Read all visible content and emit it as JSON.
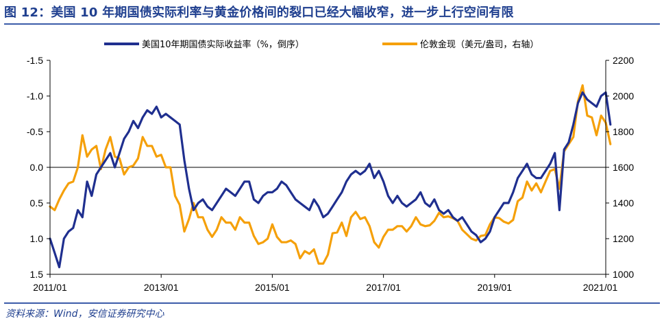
{
  "title": "图 12：美国 10 年期国债实际利率与黄金价格间的裂口已经大幅收窄，进一步上行空间有限",
  "source": "资料来源：Wind，安信证券研究中心",
  "chart_data": {
    "type": "line",
    "x_range": [
      "2011/01",
      "2021/01"
    ],
    "x_ticks": [
      "2011/01",
      "2013/01",
      "2015/01",
      "2017/01",
      "2019/01",
      "2021/01"
    ],
    "left_axis": {
      "inverted": true,
      "range": [
        1.5,
        -1.5
      ],
      "ticks": [
        "-1.5",
        "-1.0",
        "-0.5",
        "0.0",
        "0.5",
        "1.0",
        "1.5"
      ],
      "tick_values": [
        -1.5,
        -1.0,
        -0.5,
        0.0,
        0.5,
        1.0,
        1.5
      ]
    },
    "right_axis": {
      "range": [
        1000,
        2200
      ],
      "ticks": [
        "2200",
        "2000",
        "1800",
        "1600",
        "1400",
        "1200",
        "1000"
      ],
      "tick_values": [
        2200,
        2000,
        1800,
        1600,
        1400,
        1200,
        1000
      ]
    },
    "zero_line": true,
    "legend_position": "top",
    "series": [
      {
        "name": "美国10年期国债实际收益率（%，倒序）",
        "axis": "left",
        "color": "#1f2f8f",
        "points": [
          [
            "2011/01",
            1.0
          ],
          [
            "2011/02",
            1.2
          ],
          [
            "2011/03",
            1.4
          ],
          [
            "2011/04",
            1.0
          ],
          [
            "2011/05",
            0.9
          ],
          [
            "2011/06",
            0.85
          ],
          [
            "2011/07",
            0.6
          ],
          [
            "2011/08",
            0.7
          ],
          [
            "2011/09",
            0.2
          ],
          [
            "2011/10",
            0.4
          ],
          [
            "2011/11",
            0.1
          ],
          [
            "2011/12",
            0.0
          ],
          [
            "2012/01",
            -0.1
          ],
          [
            "2012/02",
            -0.2
          ],
          [
            "2012/03",
            0.0
          ],
          [
            "2012/04",
            -0.2
          ],
          [
            "2012/05",
            -0.4
          ],
          [
            "2012/06",
            -0.5
          ],
          [
            "2012/07",
            -0.65
          ],
          [
            "2012/08",
            -0.55
          ],
          [
            "2012/09",
            -0.7
          ],
          [
            "2012/10",
            -0.8
          ],
          [
            "2012/11",
            -0.75
          ],
          [
            "2012/12",
            -0.85
          ],
          [
            "2013/01",
            -0.7
          ],
          [
            "2013/02",
            -0.75
          ],
          [
            "2013/03",
            -0.7
          ],
          [
            "2013/04",
            -0.65
          ],
          [
            "2013/05",
            -0.6
          ],
          [
            "2013/06",
            -0.1
          ],
          [
            "2013/07",
            0.3
          ],
          [
            "2013/08",
            0.6
          ],
          [
            "2013/09",
            0.5
          ],
          [
            "2013/10",
            0.45
          ],
          [
            "2013/11",
            0.55
          ],
          [
            "2013/12",
            0.6
          ],
          [
            "2014/01",
            0.5
          ],
          [
            "2014/02",
            0.4
          ],
          [
            "2014/03",
            0.3
          ],
          [
            "2014/04",
            0.35
          ],
          [
            "2014/05",
            0.4
          ],
          [
            "2014/06",
            0.3
          ],
          [
            "2014/07",
            0.2
          ],
          [
            "2014/08",
            0.2
          ],
          [
            "2014/09",
            0.45
          ],
          [
            "2014/10",
            0.5
          ],
          [
            "2014/11",
            0.4
          ],
          [
            "2014/12",
            0.35
          ],
          [
            "2015/01",
            0.35
          ],
          [
            "2015/02",
            0.3
          ],
          [
            "2015/03",
            0.2
          ],
          [
            "2015/04",
            0.25
          ],
          [
            "2015/05",
            0.35
          ],
          [
            "2015/06",
            0.45
          ],
          [
            "2015/07",
            0.5
          ],
          [
            "2015/08",
            0.55
          ],
          [
            "2015/09",
            0.6
          ],
          [
            "2015/10",
            0.45
          ],
          [
            "2015/11",
            0.55
          ],
          [
            "2015/12",
            0.7
          ],
          [
            "2016/01",
            0.65
          ],
          [
            "2016/02",
            0.55
          ],
          [
            "2016/03",
            0.45
          ],
          [
            "2016/04",
            0.35
          ],
          [
            "2016/05",
            0.2
          ],
          [
            "2016/06",
            0.1
          ],
          [
            "2016/07",
            0.05
          ],
          [
            "2016/08",
            0.1
          ],
          [
            "2016/09",
            0.05
          ],
          [
            "2016/10",
            -0.05
          ],
          [
            "2016/11",
            0.15
          ],
          [
            "2016/12",
            0.05
          ],
          [
            "2017/01",
            0.2
          ],
          [
            "2017/02",
            0.4
          ],
          [
            "2017/03",
            0.5
          ],
          [
            "2017/04",
            0.4
          ],
          [
            "2017/05",
            0.5
          ],
          [
            "2017/06",
            0.55
          ],
          [
            "2017/07",
            0.5
          ],
          [
            "2017/08",
            0.45
          ],
          [
            "2017/09",
            0.35
          ],
          [
            "2017/10",
            0.5
          ],
          [
            "2017/11",
            0.55
          ],
          [
            "2017/12",
            0.45
          ],
          [
            "2018/01",
            0.6
          ],
          [
            "2018/02",
            0.65
          ],
          [
            "2018/03",
            0.6
          ],
          [
            "2018/04",
            0.7
          ],
          [
            "2018/05",
            0.75
          ],
          [
            "2018/06",
            0.7
          ],
          [
            "2018/07",
            0.8
          ],
          [
            "2018/08",
            0.9
          ],
          [
            "2018/09",
            0.95
          ],
          [
            "2018/10",
            1.05
          ],
          [
            "2018/11",
            1.0
          ],
          [
            "2018/12",
            0.9
          ],
          [
            "2019/01",
            0.7
          ],
          [
            "2019/02",
            0.6
          ],
          [
            "2019/03",
            0.5
          ],
          [
            "2019/04",
            0.5
          ],
          [
            "2019/05",
            0.35
          ],
          [
            "2019/06",
            0.15
          ],
          [
            "2019/07",
            0.05
          ],
          [
            "2019/08",
            -0.05
          ],
          [
            "2019/09",
            0.1
          ],
          [
            "2019/10",
            0.15
          ],
          [
            "2019/11",
            0.15
          ],
          [
            "2019/12",
            0.05
          ],
          [
            "2020/01",
            -0.05
          ],
          [
            "2020/02",
            -0.2
          ],
          [
            "2020/03",
            0.6
          ],
          [
            "2020/04",
            -0.25
          ],
          [
            "2020/05",
            -0.35
          ],
          [
            "2020/06",
            -0.6
          ],
          [
            "2020/07",
            -0.9
          ],
          [
            "2020/08",
            -1.05
          ],
          [
            "2020/09",
            -0.95
          ],
          [
            "2020/10",
            -0.9
          ],
          [
            "2020/11",
            -0.85
          ],
          [
            "2020/12",
            -1.0
          ],
          [
            "2021/01",
            -1.05
          ],
          [
            "2021/02",
            -0.6
          ]
        ]
      },
      {
        "name": "伦敦金现（美元/盎司，右轴）",
        "axis": "right",
        "color": "#f5a00a",
        "points": [
          [
            "2011/01",
            1380
          ],
          [
            "2011/02",
            1360
          ],
          [
            "2011/03",
            1420
          ],
          [
            "2011/04",
            1470
          ],
          [
            "2011/05",
            1510
          ],
          [
            "2011/06",
            1520
          ],
          [
            "2011/07",
            1600
          ],
          [
            "2011/08",
            1780
          ],
          [
            "2011/09",
            1660
          ],
          [
            "2011/10",
            1700
          ],
          [
            "2011/11",
            1720
          ],
          [
            "2011/12",
            1590
          ],
          [
            "2012/01",
            1700
          ],
          [
            "2012/02",
            1770
          ],
          [
            "2012/03",
            1660
          ],
          [
            "2012/04",
            1650
          ],
          [
            "2012/05",
            1560
          ],
          [
            "2012/06",
            1600
          ],
          [
            "2012/07",
            1610
          ],
          [
            "2012/08",
            1650
          ],
          [
            "2012/09",
            1770
          ],
          [
            "2012/10",
            1720
          ],
          [
            "2012/11",
            1720
          ],
          [
            "2012/12",
            1660
          ],
          [
            "2013/01",
            1670
          ],
          [
            "2013/02",
            1600
          ],
          [
            "2013/03",
            1600
          ],
          [
            "2013/04",
            1440
          ],
          [
            "2013/05",
            1390
          ],
          [
            "2013/06",
            1240
          ],
          [
            "2013/07",
            1310
          ],
          [
            "2013/08",
            1400
          ],
          [
            "2013/09",
            1320
          ],
          [
            "2013/10",
            1320
          ],
          [
            "2013/11",
            1250
          ],
          [
            "2013/12",
            1210
          ],
          [
            "2014/01",
            1250
          ],
          [
            "2014/02",
            1320
          ],
          [
            "2014/03",
            1290
          ],
          [
            "2014/04",
            1290
          ],
          [
            "2014/05",
            1250
          ],
          [
            "2014/06",
            1320
          ],
          [
            "2014/07",
            1290
          ],
          [
            "2014/08",
            1290
          ],
          [
            "2014/09",
            1215
          ],
          [
            "2014/10",
            1170
          ],
          [
            "2014/11",
            1180
          ],
          [
            "2014/12",
            1200
          ],
          [
            "2015/01",
            1280
          ],
          [
            "2015/02",
            1210
          ],
          [
            "2015/03",
            1180
          ],
          [
            "2015/04",
            1180
          ],
          [
            "2015/05",
            1190
          ],
          [
            "2015/06",
            1170
          ],
          [
            "2015/07",
            1090
          ],
          [
            "2015/08",
            1130
          ],
          [
            "2015/09",
            1115
          ],
          [
            "2015/10",
            1140
          ],
          [
            "2015/11",
            1060
          ],
          [
            "2015/12",
            1060
          ],
          [
            "2016/01",
            1110
          ],
          [
            "2016/02",
            1230
          ],
          [
            "2016/03",
            1235
          ],
          [
            "2016/04",
            1290
          ],
          [
            "2016/05",
            1215
          ],
          [
            "2016/06",
            1320
          ],
          [
            "2016/07",
            1350
          ],
          [
            "2016/08",
            1310
          ],
          [
            "2016/09",
            1320
          ],
          [
            "2016/10",
            1270
          ],
          [
            "2016/11",
            1180
          ],
          [
            "2016/12",
            1150
          ],
          [
            "2017/01",
            1210
          ],
          [
            "2017/02",
            1250
          ],
          [
            "2017/03",
            1250
          ],
          [
            "2017/04",
            1270
          ],
          [
            "2017/05",
            1270
          ],
          [
            "2017/06",
            1240
          ],
          [
            "2017/07",
            1270
          ],
          [
            "2017/08",
            1320
          ],
          [
            "2017/09",
            1280
          ],
          [
            "2017/10",
            1270
          ],
          [
            "2017/11",
            1275
          ],
          [
            "2017/12",
            1300
          ],
          [
            "2018/01",
            1345
          ],
          [
            "2018/02",
            1320
          ],
          [
            "2018/03",
            1325
          ],
          [
            "2018/04",
            1315
          ],
          [
            "2018/05",
            1300
          ],
          [
            "2018/06",
            1250
          ],
          [
            "2018/07",
            1225
          ],
          [
            "2018/08",
            1200
          ],
          [
            "2018/09",
            1190
          ],
          [
            "2018/10",
            1215
          ],
          [
            "2018/11",
            1220
          ],
          [
            "2018/12",
            1280
          ],
          [
            "2019/01",
            1320
          ],
          [
            "2019/02",
            1315
          ],
          [
            "2019/03",
            1295
          ],
          [
            "2019/04",
            1285
          ],
          [
            "2019/05",
            1305
          ],
          [
            "2019/06",
            1410
          ],
          [
            "2019/07",
            1430
          ],
          [
            "2019/08",
            1520
          ],
          [
            "2019/09",
            1470
          ],
          [
            "2019/10",
            1510
          ],
          [
            "2019/11",
            1460
          ],
          [
            "2019/12",
            1520
          ],
          [
            "2020/01",
            1580
          ],
          [
            "2020/02",
            1590
          ],
          [
            "2020/03",
            1480
          ],
          [
            "2020/04",
            1690
          ],
          [
            "2020/05",
            1730
          ],
          [
            "2020/06",
            1770
          ],
          [
            "2020/07",
            1970
          ],
          [
            "2020/08",
            2060
          ],
          [
            "2020/09",
            1890
          ],
          [
            "2020/10",
            1880
          ],
          [
            "2020/11",
            1780
          ],
          [
            "2020/12",
            1890
          ],
          [
            "2021/01",
            1850
          ],
          [
            "2021/02",
            1730
          ]
        ]
      }
    ]
  }
}
